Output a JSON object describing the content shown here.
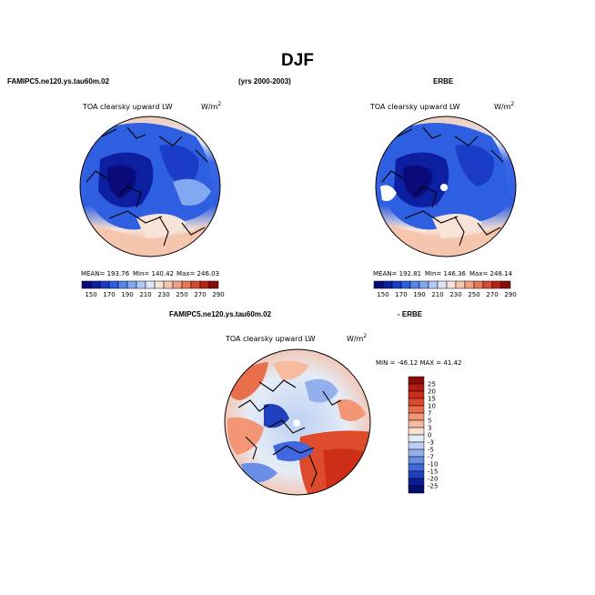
{
  "title": "DJF",
  "headers": {
    "left": "FAMIPC5.ne120.ys.tau60m.02",
    "years": "(yrs 2000-2003)",
    "right": "ERBE",
    "bottom_left": "FAMIPC5.ne120.ys.tau60m.02",
    "bottom_right": "- ERBE"
  },
  "chart_data": [
    {
      "type": "heatmap",
      "projection": "north polar stereographic",
      "title": "TOA clearsky upward LW",
      "units_base": "W/m",
      "units_sup": "2",
      "stats": {
        "mean": "MEAN= 193.76",
        "min": "Min= 140.42",
        "max": "Max= 246.03"
      },
      "colorbar": {
        "orientation": "horizontal",
        "tick_labels": [
          "150",
          "170",
          "190",
          "210",
          "230",
          "250",
          "270",
          "290"
        ],
        "colors": [
          "#0a0a7a",
          "#0c1fa0",
          "#1a3cc6",
          "#2e5fe0",
          "#5585ee",
          "#82a8f2",
          "#b3c9f5",
          "#dde5f5",
          "#f7e3d7",
          "#f5c5ad",
          "#f0a082",
          "#e87658",
          "#d54a30",
          "#b82216",
          "#8a0c0a"
        ]
      }
    },
    {
      "type": "heatmap",
      "projection": "north polar stereographic",
      "title": "TOA clearsky upward LW",
      "units_base": "W/m",
      "units_sup": "2",
      "stats": {
        "mean": "MEAN= 192.81",
        "min": "Min= 146.36",
        "max": "Max= 248.14"
      },
      "colorbar": {
        "orientation": "horizontal",
        "tick_labels": [
          "150",
          "170",
          "190",
          "210",
          "230",
          "250",
          "270",
          "290"
        ],
        "colors": [
          "#0a0a7a",
          "#0c1fa0",
          "#1a3cc6",
          "#2e5fe0",
          "#5585ee",
          "#82a8f2",
          "#b3c9f5",
          "#dde5f5",
          "#f7e3d7",
          "#f5c5ad",
          "#f0a082",
          "#e87658",
          "#d54a30",
          "#b82216",
          "#8a0c0a"
        ]
      }
    },
    {
      "type": "heatmap",
      "projection": "north polar stereographic",
      "title": "TOA clearsky upward LW",
      "units_base": "W/m",
      "units_sup": "2",
      "stats": {
        "range": "MIN = -46.12 MAX =  41.42"
      },
      "colorbar": {
        "orientation": "vertical",
        "tick_labels": [
          "25",
          "20",
          "15",
          "10",
          "7",
          "5",
          "3",
          "0",
          "-3",
          "-5",
          "-7",
          "-10",
          "-15",
          "-20",
          "-25"
        ],
        "colors": [
          "#8a0c0a",
          "#b31a10",
          "#cc2e18",
          "#dd4a2c",
          "#e86e4c",
          "#f29676",
          "#f7bba0",
          "#fbe0d2",
          "#e4ecf7",
          "#bccff2",
          "#93b0ec",
          "#6a8de6",
          "#4068dc",
          "#2040c0",
          "#0c1e96",
          "#06106a"
        ]
      }
    }
  ]
}
